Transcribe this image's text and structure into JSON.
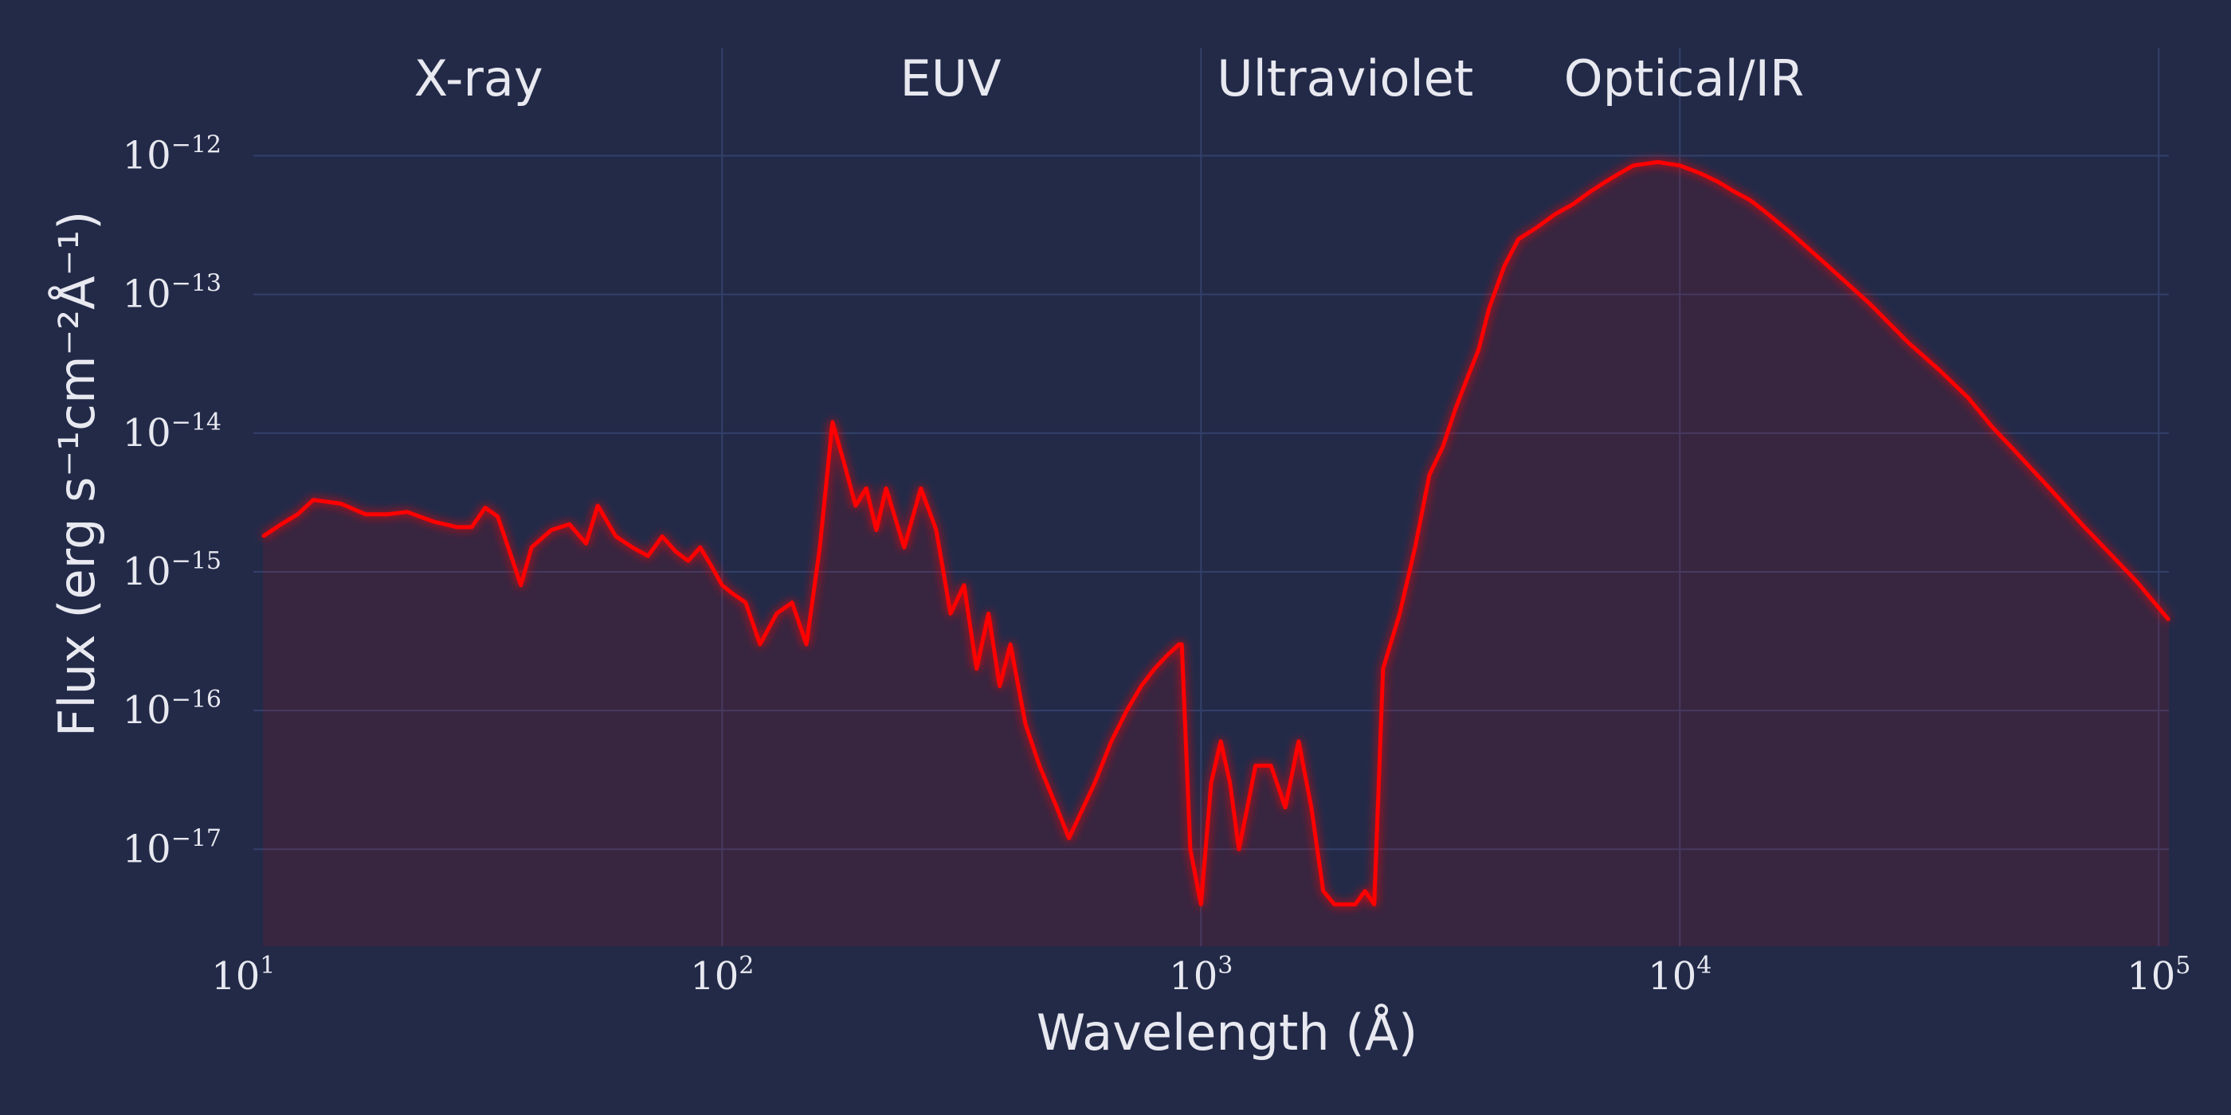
{
  "chart_data": {
    "type": "line",
    "title": "",
    "xlabel": "Wavelength (Å)",
    "ylabel": "Flux (erg s⁻¹cm⁻²Å⁻¹)",
    "x_scale": "log",
    "y_scale": "log",
    "xlim": [
      10.5,
      105000
    ],
    "ylim": [
      2e-18,
      6e-12
    ],
    "grid": true,
    "x_ticks": [
      {
        "value": 10,
        "base": "10",
        "exp": "1"
      },
      {
        "value": 100,
        "base": "10",
        "exp": "2"
      },
      {
        "value": 1000,
        "base": "10",
        "exp": "3"
      },
      {
        "value": 10000,
        "base": "10",
        "exp": "4"
      },
      {
        "value": 100000,
        "base": "10",
        "exp": "5"
      }
    ],
    "y_ticks": [
      {
        "value": 1e-12,
        "base": "10",
        "exp": "−12"
      },
      {
        "value": 1e-13,
        "base": "10",
        "exp": "−13"
      },
      {
        "value": 1e-14,
        "base": "10",
        "exp": "−14"
      },
      {
        "value": 1e-15,
        "base": "10",
        "exp": "−15"
      },
      {
        "value": 1e-16,
        "base": "10",
        "exp": "−16"
      },
      {
        "value": 1e-17,
        "base": "10",
        "exp": "−17"
      }
    ],
    "regions": [
      {
        "label": "X-ray",
        "center": 31
      },
      {
        "label": "EUV",
        "center": 300
      },
      {
        "label": "Ultraviolet",
        "center": 2000
      },
      {
        "label": "Optical/IR",
        "center": 10200
      }
    ],
    "dividers": [
      112,
      912,
      4000
    ],
    "series": [
      {
        "color": "#ff0000",
        "x": [
          11,
          12,
          13,
          14,
          16,
          18,
          20,
          22,
          25,
          28,
          30,
          32,
          34,
          36,
          38,
          40,
          44,
          48,
          52,
          55,
          60,
          65,
          70,
          75,
          80,
          85,
          90,
          95,
          100,
          105,
          112,
          120,
          130,
          140,
          150,
          160,
          170,
          180,
          190,
          200,
          210,
          220,
          240,
          260,
          280,
          300,
          320,
          340,
          360,
          380,
          400,
          430,
          460,
          500,
          530,
          560,
          600,
          650,
          700,
          750,
          800,
          850,
          900,
          912,
          950,
          1000,
          1050,
          1100,
          1150,
          1200,
          1250,
          1300,
          1400,
          1500,
          1600,
          1700,
          1800,
          1900,
          2000,
          2100,
          2200,
          2300,
          2400,
          2600,
          2800,
          3000,
          3200,
          3400,
          3600,
          3800,
          4000,
          4300,
          4600,
          5000,
          5500,
          6000,
          6500,
          7000,
          7500,
          8000,
          9000,
          10000,
          11000,
          12000,
          13000,
          14000,
          15000,
          17000,
          20000,
          25000,
          30000,
          35000,
          40000,
          45000,
          50000,
          60000,
          70000,
          80000,
          90000,
          105000
        ],
        "y": [
          1.8e-15,
          2.2e-15,
          2.6e-15,
          3.3e-15,
          3.1e-15,
          2.6e-15,
          2.6e-15,
          2.7e-15,
          2.3e-15,
          2.1e-15,
          2.1e-15,
          2.9e-15,
          2.5e-15,
          1.4e-15,
          8e-16,
          1.5e-15,
          2e-15,
          2.2e-15,
          1.6e-15,
          3e-15,
          1.8e-15,
          1.5e-15,
          1.3e-15,
          1.8e-15,
          1.4e-15,
          1.2e-15,
          1.5e-15,
          1.1e-15,
          8e-16,
          7e-16,
          6e-16,
          3e-16,
          5e-16,
          6e-16,
          3e-16,
          1.5e-15,
          1.2e-14,
          6e-15,
          3e-15,
          4e-15,
          2e-15,
          4e-15,
          1.5e-15,
          4e-15,
          2e-15,
          5e-16,
          8e-16,
          2e-16,
          5e-16,
          1.5e-16,
          3e-16,
          8e-17,
          4e-17,
          2e-17,
          1.2e-17,
          1.8e-17,
          3e-17,
          6e-17,
          1e-16,
          1.5e-16,
          2e-16,
          2.5e-16,
          3e-16,
          3e-16,
          1e-17,
          4e-18,
          3e-17,
          6e-17,
          3e-17,
          1e-17,
          2e-17,
          4e-17,
          4e-17,
          2e-17,
          6e-17,
          2e-17,
          5e-18,
          4e-18,
          4e-18,
          4e-18,
          5e-18,
          4e-18,
          2e-16,
          5e-16,
          1.5e-15,
          5e-15,
          8e-15,
          1.5e-14,
          2.5e-14,
          4e-14,
          8e-14,
          1.6e-13,
          2.5e-13,
          3e-13,
          3.8e-13,
          4.5e-13,
          5.5e-13,
          6.5e-13,
          7.5e-13,
          8.5e-13,
          9e-13,
          8.5e-13,
          7.5e-13,
          6.5e-13,
          5.5e-13,
          4.8e-13,
          4e-13,
          2.8e-13,
          1.7e-13,
          8.5e-14,
          4.5e-14,
          2.8e-14,
          1.8e-14,
          1.1e-14,
          7.5e-15,
          3.8e-15,
          2.1e-15,
          1.3e-15,
          8.5e-16,
          4.5e-16
        ]
      }
    ]
  }
}
